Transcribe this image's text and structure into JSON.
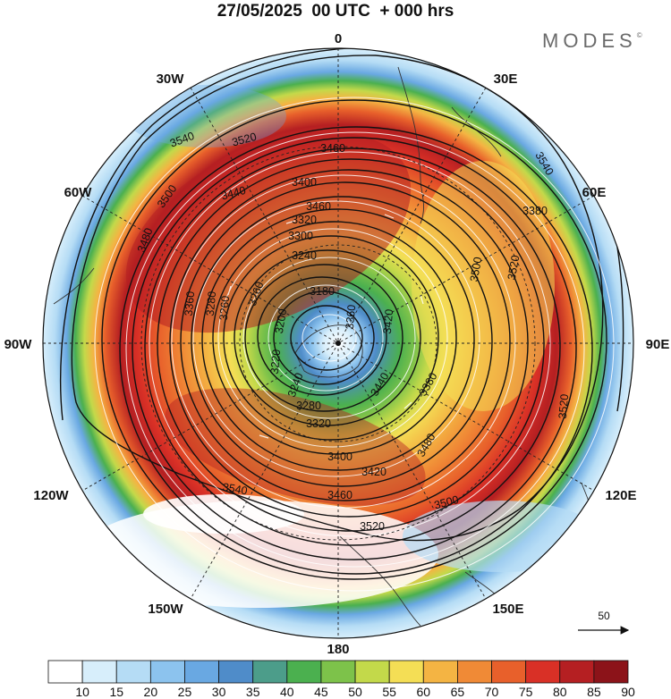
{
  "title": "27/05/2025  00 UTC  + 000 hrs",
  "brand": "MODES",
  "brand_mark": "©",
  "longitude_labels": {
    "lon_0": "0",
    "lon_30e": "30E",
    "lon_60e": "60E",
    "lon_90e": "90E",
    "lon_120e": "120E",
    "lon_150e": "150E",
    "lon_180": "180",
    "lon_150w": "150W",
    "lon_120w": "120W",
    "lon_90w": "90W",
    "lon_60w": "60W",
    "lon_30w": "30W"
  },
  "contour_labels": [
    "3540",
    "3520",
    "3460",
    "3500",
    "3440",
    "3400",
    "3480",
    "3460",
    "3320",
    "3300",
    "3240",
    "3260",
    "3180",
    "3200",
    "3220",
    "3240",
    "3280",
    "3320",
    "3400",
    "3420",
    "3460",
    "3500",
    "3520",
    "3540",
    "3360",
    "3420",
    "3440",
    "3380",
    "3480",
    "3500",
    "3520",
    "3540",
    "3520",
    "3380",
    "3360",
    "3280",
    "3260"
  ],
  "vector_reference": {
    "value": "50"
  },
  "colorbar": {
    "ticks": [
      "10",
      "15",
      "20",
      "25",
      "30",
      "35",
      "40",
      "45",
      "50",
      "55",
      "60",
      "65",
      "70",
      "75",
      "80",
      "85",
      "90"
    ],
    "colors": [
      "#ffffff",
      "#d7eefb",
      "#b5dcf5",
      "#8cc3ee",
      "#69a8e2",
      "#4f8cc9",
      "#4c9d8a",
      "#4bb04f",
      "#7dc24a",
      "#c3d94a",
      "#f4de55",
      "#f4b443",
      "#f08a36",
      "#e8602b",
      "#d93026",
      "#b51f22",
      "#8c1319"
    ]
  },
  "map": {
    "field": "wind speed",
    "projection": "polar stereographic, south pole centred",
    "geopotential_contour_interval": 20
  }
}
